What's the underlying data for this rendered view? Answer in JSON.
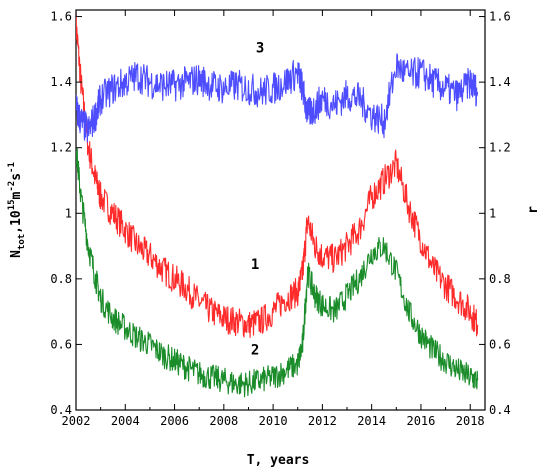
{
  "chart_data": {
    "type": "line",
    "xlabel": "T, years",
    "ylabel_left": {
      "main": "N",
      "sub1": "tot",
      "mid": ",10",
      "sup1": "15",
      "unit1": "m",
      "sup2": "-2",
      "unit2": "s",
      "sup3": "-1"
    },
    "ylabel_right": "r",
    "xlim": [
      2002,
      2018.6
    ],
    "ylim": [
      0.4,
      1.62
    ],
    "x_ticks": [
      "2002",
      "2004",
      "2006",
      "2008",
      "2010",
      "2012",
      "2014",
      "2016",
      "2018"
    ],
    "y_ticks_left": [
      "0.4",
      "0.6",
      "0.8",
      "1",
      "1.2",
      "1.4",
      "1.6"
    ],
    "y_ticks_right": [
      "0.4",
      "0.6",
      "0.8",
      "1",
      "1.2",
      "1.4",
      "1.6"
    ],
    "grid": false,
    "legend": "none",
    "series": [
      {
        "curve_label": "1",
        "color": "#ff2a2a",
        "x": [
          2002.0,
          2002.2,
          2002.5,
          2002.8,
          2003.0,
          2003.5,
          2004.0,
          2004.5,
          2005.0,
          2005.5,
          2006.0,
          2006.5,
          2007.0,
          2007.5,
          2008.0,
          2008.5,
          2009.0,
          2009.5,
          2010.0,
          2010.5,
          2011.0,
          2011.2,
          2011.4,
          2011.7,
          2012.0,
          2012.5,
          2013.0,
          2013.5,
          2014.0,
          2014.5,
          2015.0,
          2015.5,
          2016.0,
          2016.5,
          2017.0,
          2017.5,
          2018.0,
          2018.3
        ],
        "values": [
          1.58,
          1.4,
          1.2,
          1.1,
          1.05,
          1.0,
          0.95,
          0.9,
          0.87,
          0.83,
          0.8,
          0.77,
          0.73,
          0.7,
          0.68,
          0.67,
          0.66,
          0.67,
          0.7,
          0.74,
          0.76,
          0.82,
          0.98,
          0.9,
          0.87,
          0.86,
          0.9,
          0.95,
          1.05,
          1.1,
          1.15,
          1.02,
          0.92,
          0.83,
          0.78,
          0.74,
          0.7,
          0.66
        ]
      },
      {
        "curve_label": "2",
        "color": "#1a8c2a",
        "x": [
          2002.0,
          2002.2,
          2002.5,
          2002.8,
          2003.0,
          2003.5,
          2004.0,
          2004.5,
          2005.0,
          2005.5,
          2006.0,
          2006.5,
          2007.0,
          2007.5,
          2008.0,
          2008.5,
          2009.0,
          2009.5,
          2010.0,
          2010.5,
          2011.0,
          2011.2,
          2011.4,
          2011.7,
          2012.0,
          2012.5,
          2013.0,
          2013.5,
          2014.0,
          2014.5,
          2015.0,
          2015.5,
          2016.0,
          2016.5,
          2017.0,
          2017.5,
          2018.0,
          2018.3
        ],
        "values": [
          1.2,
          1.05,
          0.9,
          0.8,
          0.74,
          0.68,
          0.65,
          0.62,
          0.6,
          0.57,
          0.55,
          0.53,
          0.51,
          0.5,
          0.49,
          0.48,
          0.48,
          0.49,
          0.5,
          0.52,
          0.54,
          0.6,
          0.82,
          0.75,
          0.72,
          0.7,
          0.75,
          0.8,
          0.88,
          0.9,
          0.82,
          0.7,
          0.63,
          0.58,
          0.55,
          0.52,
          0.5,
          0.49
        ]
      },
      {
        "curve_label": "3",
        "color": "#4d4dff",
        "x": [
          2002.0,
          2002.2,
          2002.5,
          2002.8,
          2003.0,
          2003.5,
          2004.0,
          2004.5,
          2005.0,
          2005.5,
          2006.0,
          2006.5,
          2007.0,
          2007.5,
          2008.0,
          2008.5,
          2009.0,
          2009.5,
          2010.0,
          2010.5,
          2011.0,
          2011.2,
          2011.4,
          2011.7,
          2012.0,
          2012.5,
          2013.0,
          2013.5,
          2014.0,
          2014.5,
          2015.0,
          2015.5,
          2016.0,
          2016.5,
          2017.0,
          2017.5,
          2018.0,
          2018.3
        ],
        "values": [
          1.32,
          1.28,
          1.25,
          1.3,
          1.35,
          1.38,
          1.4,
          1.42,
          1.4,
          1.39,
          1.39,
          1.4,
          1.41,
          1.39,
          1.38,
          1.39,
          1.38,
          1.37,
          1.38,
          1.4,
          1.43,
          1.38,
          1.3,
          1.32,
          1.35,
          1.33,
          1.36,
          1.35,
          1.3,
          1.28,
          1.45,
          1.42,
          1.43,
          1.4,
          1.38,
          1.36,
          1.4,
          1.37
        ]
      }
    ]
  }
}
